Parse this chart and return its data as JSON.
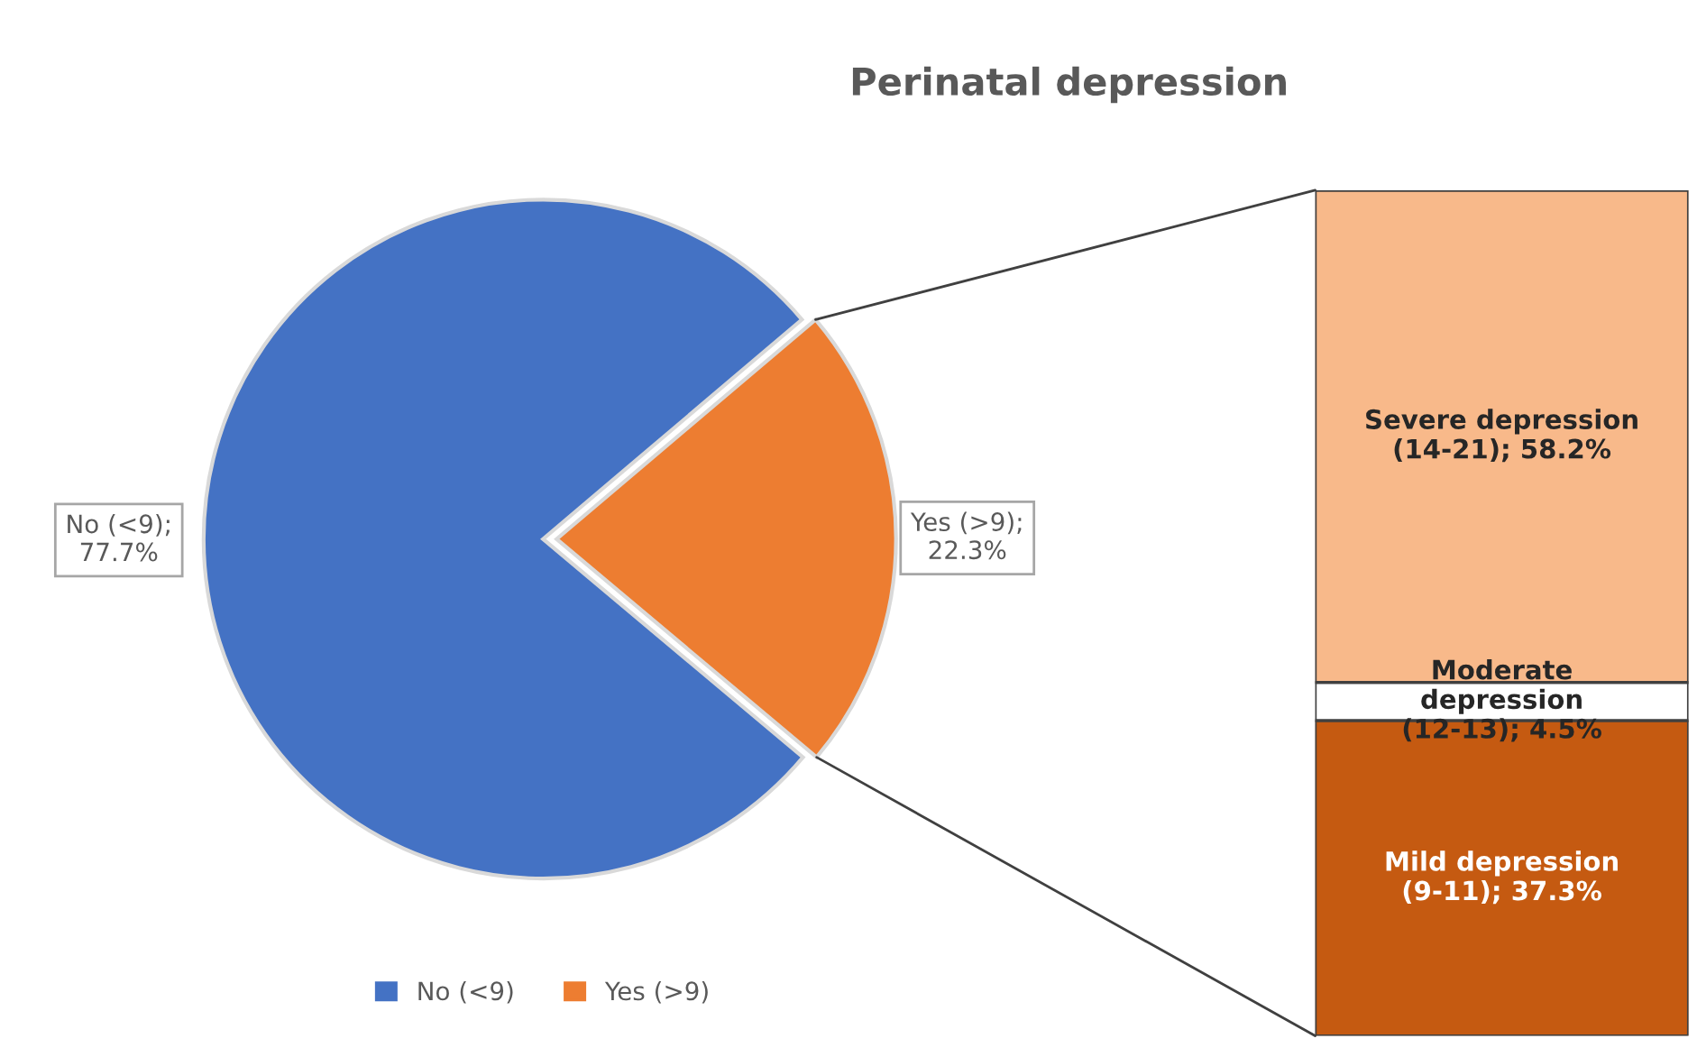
{
  "chart_data": [
    {
      "type": "pie",
      "title": "Perinatal depression",
      "categories": [
        "No (<9)",
        "Yes (>9)"
      ],
      "values": [
        77.7,
        22.3
      ],
      "colors": [
        "#4472c4",
        "#ed7d31"
      ],
      "value_labels": [
        "No (<9);\n77.7%",
        "Yes (>9);\n22.3%"
      ],
      "legend": "bottom"
    },
    {
      "type": "bar",
      "stacked": true,
      "categories": [
        null
      ],
      "series": [
        {
          "color": "#c55a11",
          "values": [
            37.3
          ],
          "value_labels": [
            "Mild depression\n(9-11); 37.3%"
          ]
        },
        {
          "color": "#ffffff",
          "values": [
            4.5
          ],
          "value_labels": [
            "Moderate\ndepression\n(12-13); 4.5%"
          ]
        },
        {
          "color": "#f8b98a",
          "values": [
            58.2
          ],
          "value_labels": [
            "Severe depression\n(14-21); 58.2%"
          ]
        }
      ]
    }
  ]
}
